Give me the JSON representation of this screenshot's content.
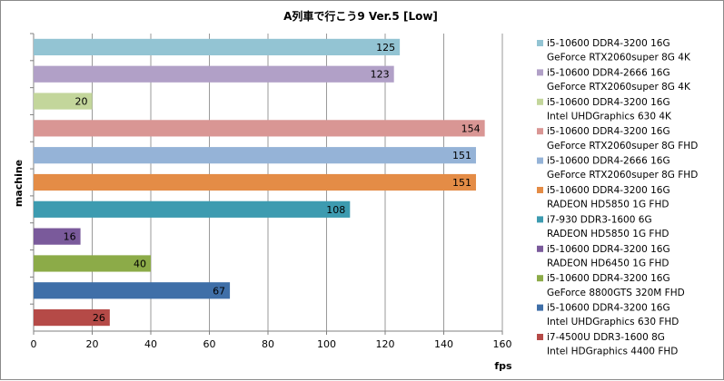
{
  "chart_data": {
    "type": "bar",
    "orientation": "horizontal",
    "title": "A列車で行こう9 Ver.5 [Low]",
    "xlabel": "fps",
    "ylabel": "machine",
    "xlim": [
      0,
      160
    ],
    "xticks": [
      0,
      20,
      40,
      60,
      80,
      100,
      120,
      140,
      160
    ],
    "grid": true,
    "legend_position": "right",
    "series": [
      {
        "name": "i5-10600  DDR4-3200 16G\nGeForce RTX2060super 8G  4K",
        "value": 125,
        "color": "#93c4d3"
      },
      {
        "name": "i5-10600  DDR4-2666 16G\nGeForce RTX2060super 8G  4K",
        "value": 123,
        "color": "#b1a0c7"
      },
      {
        "name": "i5-10600 DDR4-3200 16G\nIntel UHDGraphics 630  4K",
        "value": 20,
        "color": "#c3d69b"
      },
      {
        "name": "i5-10600  DDR4-3200 16G\nGeForce RTX2060super 8G  FHD",
        "value": 154,
        "color": "#d99694"
      },
      {
        "name": "i5-10600  DDR4-2666 16G\nGeForce RTX2060super 8G  FHD",
        "value": 151,
        "color": "#95b3d7"
      },
      {
        "name": "i5-10600  DDR4-3200 16G\nRADEON HD5850 1G FHD",
        "value": 151,
        "color": "#e48c46"
      },
      {
        "name": "i7-930  DDR3-1600 6G\nRADEON HD5850 1G  FHD",
        "value": 108,
        "color": "#3d9bb0"
      },
      {
        "name": "i5-10600  DDR4-3200 16G\nRADEON HD6450 1G  FHD",
        "value": 16,
        "color": "#7a5a9b"
      },
      {
        "name": "i5-10600  DDR4-3200 16G\nGeForce 8800GTS 320M  FHD",
        "value": 40,
        "color": "#8cab48"
      },
      {
        "name": "i5-10600 DDR4-3200 16G\nIntel UHDGraphics 630  FHD",
        "value": 67,
        "color": "#3f6fa8"
      },
      {
        "name": "i7-4500U DDR3-1600 8G\nIntel HDGraphics 4400  FHD",
        "value": 26,
        "color": "#b54a47"
      }
    ]
  }
}
